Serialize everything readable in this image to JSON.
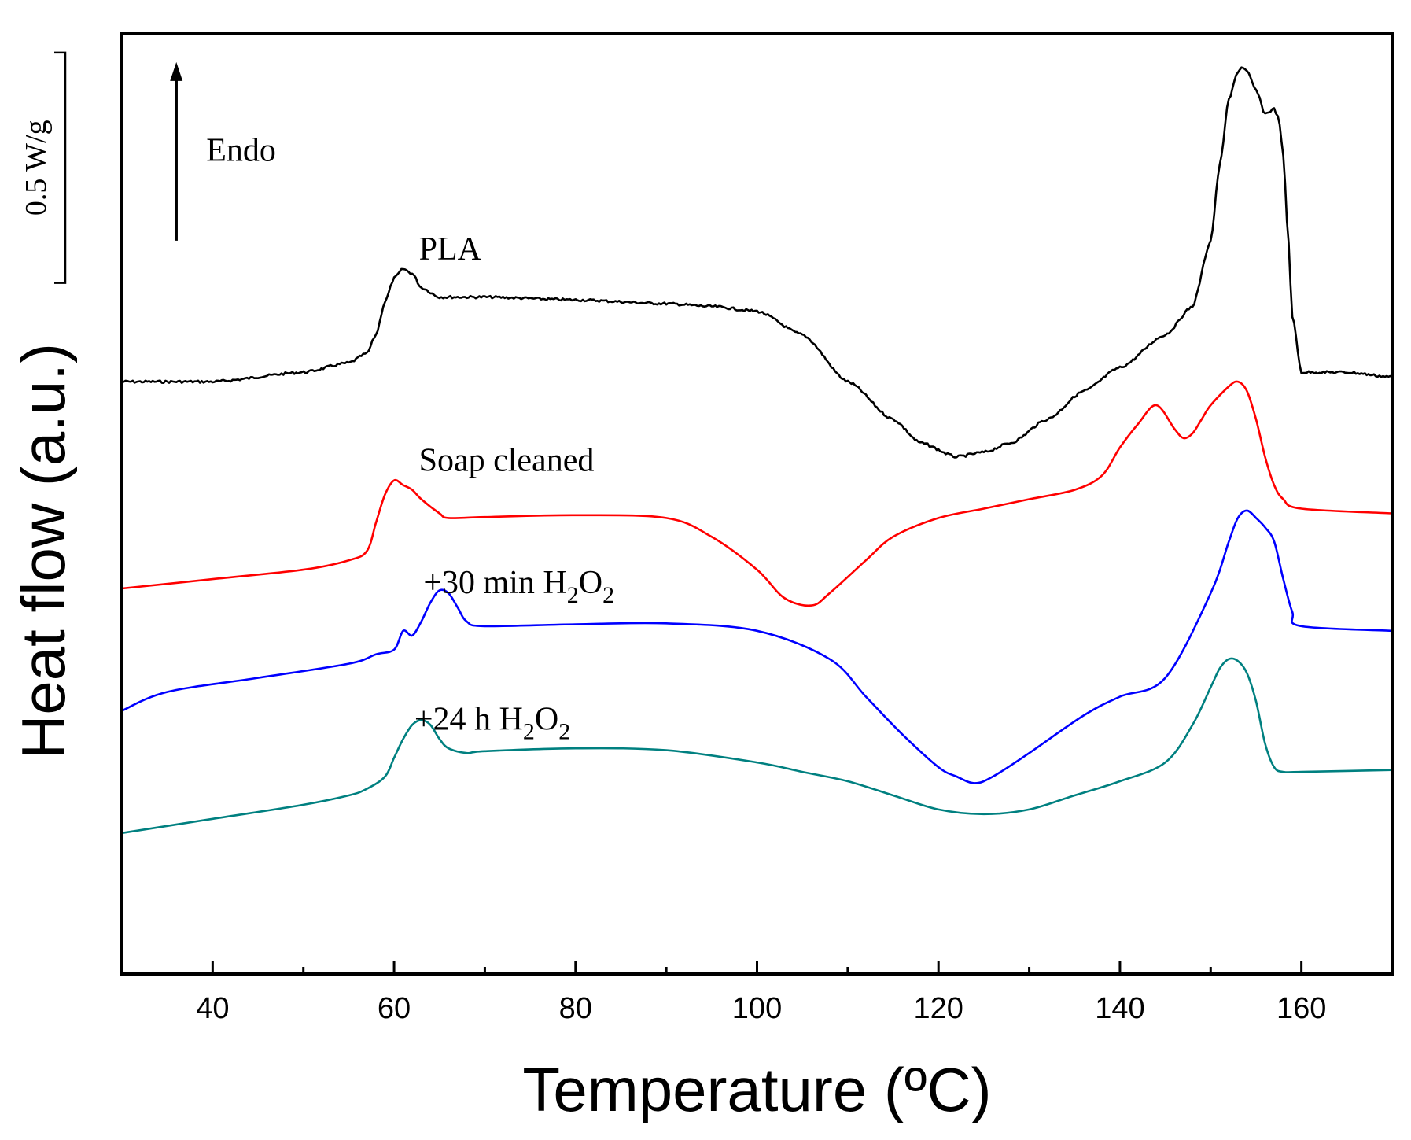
{
  "chart_data": {
    "type": "line",
    "title": "",
    "xlabel": "Temperature (ºC)",
    "ylabel": "Heat flow (a.u.)",
    "xlim": [
      30,
      170
    ],
    "ylim": [
      0,
      100
    ],
    "x_major_ticks": [
      40,
      60,
      80,
      100,
      120,
      140,
      160
    ],
    "x_tick_labels": [
      "40",
      "60",
      "80",
      "100",
      "120",
      "140",
      "160"
    ],
    "x_minor_ticks": [
      30,
      50,
      70,
      90,
      110,
      130,
      150,
      170
    ],
    "y_ticks_shown": false,
    "grid": false,
    "scale_bar": {
      "label": "0.5 W/g",
      "y_top": 98,
      "y_bottom": 73.5
    },
    "endo_arrow": {
      "label": "Endo",
      "x": 36,
      "y_from": 78,
      "y_to": 97
    },
    "series": [
      {
        "name": "PLA",
        "label": "PLA",
        "color": "#000000",
        "label_pos": [
          61,
          76
        ],
        "noise": true,
        "x": [
          30,
          40,
          50,
          55,
          57,
          58,
          59,
          60,
          61,
          62,
          63,
          65,
          70,
          80,
          90,
          95,
          100,
          105,
          110,
          115,
          118,
          122,
          125,
          128,
          132,
          136,
          140,
          145,
          148,
          150,
          151,
          152,
          153,
          153.5,
          154,
          155,
          156,
          157,
          157.5,
          158,
          158.5,
          159,
          160,
          162,
          165,
          170
        ],
        "y": [
          63,
          63,
          64,
          65,
          66,
          68,
          71.5,
          74,
          75,
          74.5,
          73,
          72,
          72,
          71.7,
          71.3,
          71,
          70.5,
          68,
          63,
          59,
          56.5,
          55,
          55.5,
          56.5,
          59,
          62,
          64.5,
          68,
          71,
          78,
          86,
          93,
          96,
          96.5,
          96,
          94,
          91.5,
          92,
          91,
          87,
          79,
          70,
          64,
          64,
          64,
          63.5
        ]
      },
      {
        "name": "Soap cleaned",
        "label": "Soap cleaned",
        "color": "#ff0000",
        "label_pos": [
          61,
          53.5
        ],
        "noise": false,
        "x": [
          30,
          40,
          50,
          55,
          57,
          58,
          59,
          60,
          61,
          62,
          63,
          65,
          66,
          70,
          80,
          90,
          95,
          100,
          103,
          106,
          108,
          112,
          115,
          120,
          125,
          130,
          135,
          138,
          140,
          142,
          144,
          146,
          147,
          148,
          149,
          150,
          152,
          153,
          154,
          155,
          156,
          157,
          158,
          160,
          170
        ],
        "y": [
          41,
          42,
          43,
          44,
          45,
          48,
          51,
          52.5,
          52,
          51.5,
          50.5,
          49,
          48.5,
          48.6,
          48.8,
          48.5,
          46.5,
          43,
          40,
          39.2,
          40.5,
          44,
          46.5,
          48.5,
          49.5,
          50.5,
          51.5,
          53,
          56,
          58.5,
          60.5,
          58,
          57,
          57.5,
          59,
          60.5,
          62.5,
          63,
          62,
          59,
          55,
          52,
          50.5,
          49.5,
          49
        ]
      },
      {
        "name": "+30 min H2O2",
        "label_main": "+30 min H",
        "label_sub1": "2",
        "label_mid": "O",
        "label_sub2": "2",
        "color": "#0000ff",
        "label_pos": [
          61.5,
          40.5
        ],
        "noise": false,
        "x": [
          30,
          35,
          45,
          55,
          58,
          60,
          61,
          62,
          63,
          64,
          65,
          66,
          67,
          68,
          70,
          80,
          90,
          100,
          108,
          112,
          116,
          120,
          122,
          124,
          126,
          130,
          136,
          140,
          145,
          150,
          152,
          153,
          154,
          155,
          156,
          157,
          158,
          159,
          160,
          170
        ],
        "y": [
          28,
          30,
          31.5,
          33,
          34,
          34.5,
          36.5,
          36,
          37.5,
          39.5,
          40.8,
          40.5,
          39,
          37.5,
          37,
          37.2,
          37.3,
          36.5,
          33.5,
          29.5,
          25.5,
          22,
          21,
          20.3,
          21,
          23.5,
          27.5,
          29.5,
          31.5,
          40.5,
          46,
          48.5,
          49.3,
          48.5,
          47.5,
          46,
          42,
          38.5,
          37,
          36.5
        ]
      },
      {
        "name": "+24 h H2O2",
        "label_main": "+24 h H",
        "label_sub1": "2",
        "label_mid": "O",
        "label_sub2": "2",
        "color": "#008080",
        "label_pos": [
          60.5,
          26
        ],
        "noise": false,
        "x": [
          30,
          40,
          50,
          55,
          57,
          59,
          60,
          61,
          62,
          63,
          64,
          65,
          66,
          68,
          70,
          80,
          90,
          100,
          105,
          110,
          115,
          120,
          125,
          130,
          135,
          140,
          145,
          148,
          150,
          151,
          152,
          153,
          154,
          155,
          156,
          157,
          158,
          160,
          170
        ],
        "y": [
          15,
          16.5,
          18,
          19,
          19.7,
          21,
          23,
          25,
          26.5,
          27,
          26.5,
          25,
          24,
          23.5,
          23.7,
          24,
          23.8,
          22.5,
          21.5,
          20.5,
          19,
          17.5,
          17,
          17.5,
          19,
          20.5,
          22.5,
          26.5,
          30.5,
          32.5,
          33.5,
          33.3,
          32,
          29,
          24.5,
          22,
          21.5,
          21.5,
          21.7
        ]
      }
    ]
  }
}
